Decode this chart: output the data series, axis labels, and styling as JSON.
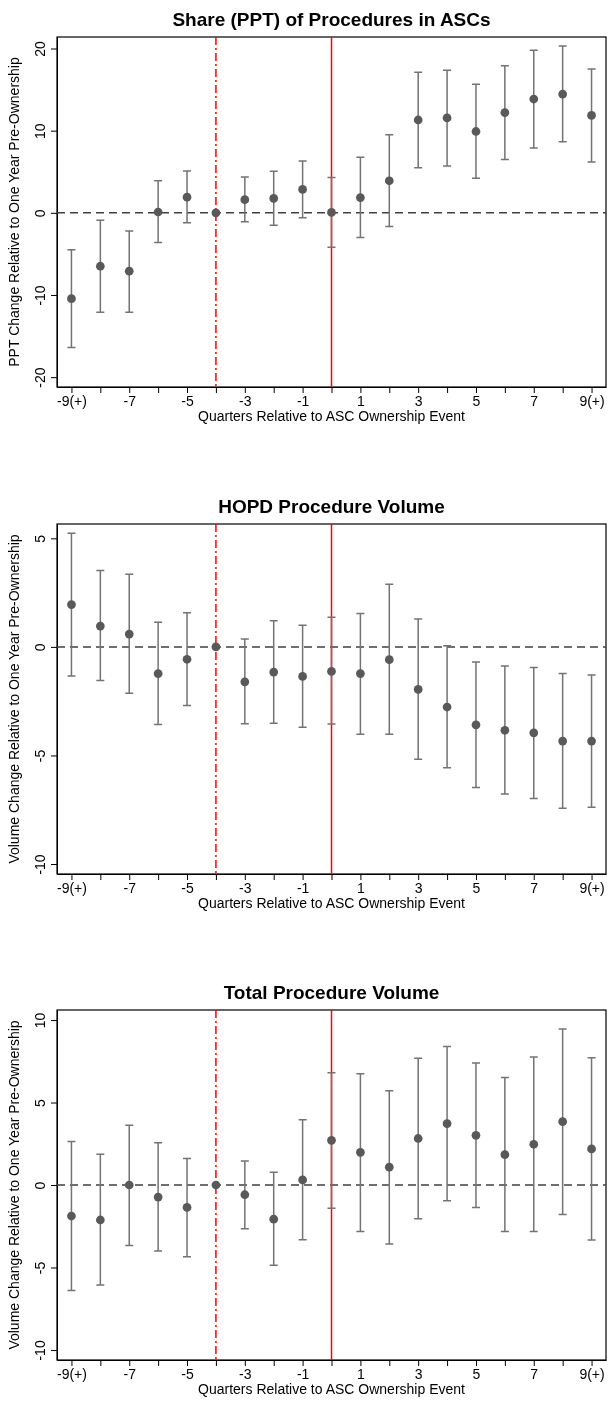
{
  "chart_data": [
    {
      "type": "scatter",
      "title": "Share (PPT) of Procedures in ASCs",
      "xlabel": "Quarters Relative to ASC Ownership Event",
      "ylabel": "PPT Change Relative to One Year Pre-Ownership",
      "marker": "circle",
      "x": [
        -9,
        -8,
        -7,
        -6,
        -5,
        -4,
        -3,
        -2,
        -1,
        0,
        1,
        2,
        3,
        4,
        5,
        6,
        7,
        8,
        9
      ],
      "xlim": [
        -9.5,
        9.5
      ],
      "xticks": [
        {
          "value": -9,
          "label": "-9(+)"
        },
        {
          "value": -8,
          "label": null
        },
        -7,
        {
          "value": -6,
          "label": null
        },
        -5,
        {
          "value": -4,
          "label": null
        },
        -3,
        {
          "value": -2,
          "label": null
        },
        -1,
        {
          "value": 0,
          "label": null
        },
        1,
        {
          "value": 2,
          "label": null
        },
        3,
        {
          "value": 4,
          "label": null
        },
        5,
        {
          "value": 6,
          "label": null
        },
        7,
        {
          "value": 8,
          "label": null
        },
        {
          "value": 9,
          "label": "9(+)"
        }
      ],
      "ylim": [
        -21.2,
        21.4
      ],
      "yticks": [
        -20,
        -10,
        0,
        10,
        20
      ],
      "series": [
        {
          "color": "#595959",
          "values": [
            -10.45,
            -6.5,
            -7.1,
            0.1,
            1.9,
            0,
            1.6,
            1.75,
            2.85,
            0.05,
            1.85,
            3.9,
            11.3,
            11.55,
            9.9,
            12.2,
            13.85,
            14.45,
            11.85
          ],
          "errors": [
            [
              -16.4,
              -4.5
            ],
            [
              -12.1,
              -0.9
            ],
            [
              -12.1,
              -2.2
            ],
            [
              -3.6,
              3.9
            ],
            [
              -1.2,
              5.1
            ],
            null,
            [
              -1.1,
              4.35
            ],
            [
              -1.5,
              5.05
            ],
            [
              -0.6,
              6.3
            ],
            [
              -4.2,
              4.3
            ],
            [
              -3.0,
              6.75
            ],
            [
              -1.65,
              9.5
            ],
            [
              5.5,
              17.1
            ],
            [
              5.7,
              17.35
            ],
            [
              4.2,
              15.65
            ],
            [
              6.5,
              17.9
            ],
            [
              7.9,
              19.8
            ],
            [
              8.65,
              20.3
            ],
            [
              6.2,
              17.5
            ]
          ]
        }
      ],
      "ref_lines": [
        {
          "axis": "y",
          "value": 0,
          "color": "#404040",
          "line_style": "dashed"
        },
        {
          "axis": "x",
          "value": -4,
          "color": "#ff0000",
          "line_style": "dashed"
        },
        {
          "axis": "x",
          "value": 0,
          "color": "#ff0000",
          "line_style": "solid"
        }
      ]
    },
    {
      "type": "scatter",
      "title": "HOPD Procedure Volume",
      "xlabel": "Quarters Relative to ASC Ownership Event",
      "ylabel": "Volume Change Relative to One Year Pre-Ownership",
      "marker": "circle",
      "x": [
        -9,
        -8,
        -7,
        -6,
        -5,
        -4,
        -3,
        -2,
        -1,
        0,
        1,
        2,
        3,
        4,
        5,
        6,
        7,
        8,
        9
      ],
      "xlim": [
        -9.5,
        9.5
      ],
      "xticks": [
        {
          "value": -9,
          "label": "-9(+)"
        },
        {
          "value": -8,
          "label": null
        },
        -7,
        {
          "value": -6,
          "label": null
        },
        -5,
        {
          "value": -4,
          "label": null
        },
        -3,
        {
          "value": -2,
          "label": null
        },
        -1,
        {
          "value": 0,
          "label": null
        },
        1,
        {
          "value": 2,
          "label": null
        },
        3,
        {
          "value": 4,
          "label": null
        },
        5,
        {
          "value": 6,
          "label": null
        },
        7,
        {
          "value": 8,
          "label": null
        },
        {
          "value": 9,
          "label": "9(+)"
        }
      ],
      "ylim": [
        -10.46,
        5.66
      ],
      "yticks": [
        -10,
        -5,
        0,
        5
      ],
      "series": [
        {
          "color": "#595959",
          "values": [
            1.95,
            0.96,
            0.59,
            -1.23,
            -0.57,
            0,
            -1.61,
            -1.16,
            -1.36,
            -1.13,
            -1.23,
            -0.59,
            -1.96,
            -2.77,
            -3.59,
            -3.84,
            -3.96,
            -4.34,
            -4.34
          ],
          "errors": [
            [
              -1.34,
              5.23
            ],
            [
              -1.55,
              3.52
            ],
            [
              -2.14,
              3.34
            ],
            [
              -3.57,
              1.13
            ],
            [
              -2.7,
              1.57
            ],
            null,
            [
              -3.54,
              0.36
            ],
            [
              -3.52,
              1.2
            ],
            [
              -3.7,
              1.0
            ],
            [
              -3.55,
              1.36
            ],
            [
              -4.02,
              1.54
            ],
            [
              -4.02,
              2.88
            ],
            [
              -5.18,
              1.29
            ],
            [
              -5.57,
              0.05
            ],
            [
              -6.48,
              -0.7
            ],
            [
              -6.77,
              -0.88
            ],
            [
              -6.98,
              -0.95
            ],
            [
              -7.43,
              -1.23
            ],
            [
              -7.39,
              -1.3
            ]
          ]
        }
      ],
      "ref_lines": [
        {
          "axis": "y",
          "value": 0,
          "color": "#404040",
          "line_style": "dashed"
        },
        {
          "axis": "x",
          "value": -4,
          "color": "#ff0000",
          "line_style": "dashed"
        },
        {
          "axis": "x",
          "value": 0,
          "color": "#ff0000",
          "line_style": "solid"
        }
      ]
    },
    {
      "type": "scatter",
      "title": "Total Procedure Volume",
      "xlabel": "Quarters Relative to ASC Ownership Event",
      "ylabel": "Volume Change Relative to One Year Pre-Ownership",
      "marker": "circle",
      "x": [
        -9,
        -8,
        -7,
        -6,
        -5,
        -4,
        -3,
        -2,
        -1,
        0,
        1,
        2,
        3,
        4,
        5,
        6,
        7,
        8,
        9
      ],
      "xlim": [
        -9.5,
        9.5
      ],
      "xticks": [
        {
          "value": -9,
          "label": "-9(+)"
        },
        {
          "value": -8,
          "label": null
        },
        -7,
        {
          "value": -6,
          "label": null
        },
        -5,
        {
          "value": -4,
          "label": null
        },
        -3,
        {
          "value": -2,
          "label": null
        },
        -1,
        {
          "value": 0,
          "label": null
        },
        1,
        {
          "value": 2,
          "label": null
        },
        3,
        {
          "value": 4,
          "label": null
        },
        5,
        {
          "value": 6,
          "label": null
        },
        7,
        {
          "value": 8,
          "label": null
        },
        {
          "value": 9,
          "label": "9(+)"
        }
      ],
      "ylim": [
        -10.61,
        10.61
      ],
      "yticks": [
        -10,
        -5,
        0,
        5,
        10
      ],
      "series": [
        {
          "color": "#595959",
          "values": [
            -1.88,
            -2.12,
            0,
            -0.73,
            -1.36,
            0,
            -0.59,
            -2.07,
            0.31,
            2.71,
            1.98,
            1.08,
            2.82,
            3.72,
            3.01,
            1.84,
            2.47,
            3.84,
            2.19
          ],
          "errors": [
            [
              -6.4,
              2.64
            ],
            [
              -6.07,
              1.86
            ],
            [
              -3.67,
              3.62
            ],
            [
              -4.0,
              2.56
            ],
            [
              -4.35,
              1.6
            ],
            null,
            [
              -2.66,
              1.46
            ],
            [
              -4.87,
              0.78
            ],
            [
              -3.32,
              3.95
            ],
            [
              -1.41,
              6.8
            ],
            [
              -2.82,
              6.75
            ],
            [
              -3.58,
              5.72
            ],
            [
              -2.05,
              7.69
            ],
            [
              -0.96,
              8.4
            ],
            [
              -1.36,
              7.39
            ],
            [
              -2.82,
              6.52
            ],
            [
              -2.82,
              7.76
            ],
            [
              -1.79,
              9.46
            ],
            [
              -3.34,
              7.72
            ]
          ]
        }
      ],
      "ref_lines": [
        {
          "axis": "y",
          "value": 0,
          "color": "#404040",
          "line_style": "dashed"
        },
        {
          "axis": "x",
          "value": -4,
          "color": "#ff0000",
          "line_style": "dashed"
        },
        {
          "axis": "x",
          "value": 0,
          "color": "#ff0000",
          "line_style": "solid"
        }
      ]
    }
  ]
}
